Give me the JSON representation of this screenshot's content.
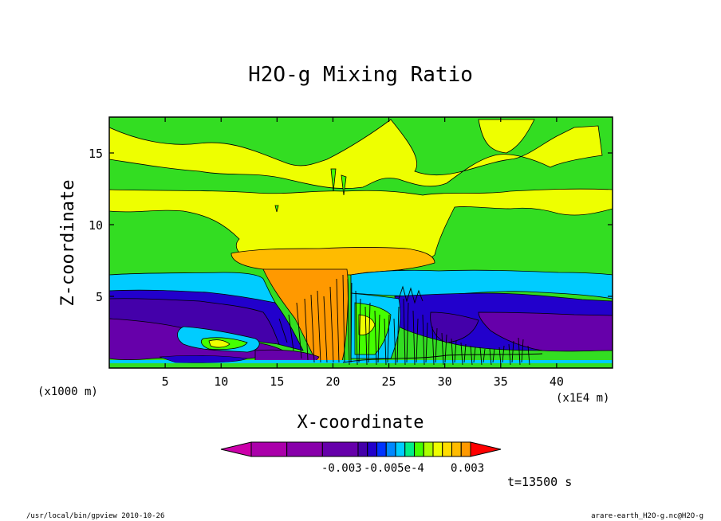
{
  "chart_data": {
    "type": "heatmap",
    "title": "H2O-g Mixing Ratio",
    "xlabel": "X-coordinate",
    "ylabel": "Z-coordinate",
    "x_unit_left": "(x1000 m)",
    "x_unit_right": "(x1E4 m)",
    "xlim": [
      0,
      45
    ],
    "ylim": [
      0,
      17.5
    ],
    "x_ticks": [
      "5",
      "10",
      "15",
      "20",
      "25",
      "30",
      "35",
      "40"
    ],
    "x_tick_values": [
      5,
      10,
      15,
      20,
      25,
      30,
      35,
      40
    ],
    "y_ticks": [
      "5",
      "10",
      "15"
    ],
    "y_tick_values": [
      5,
      10,
      15
    ],
    "colorbar": {
      "colors": [
        "#cc00aa",
        "#aa00aa",
        "#8800aa",
        "#6600aa",
        "#4400aa",
        "#2200cc",
        "#0033ff",
        "#0088ff",
        "#00ccff",
        "#00ee88",
        "#44ff00",
        "#aaff00",
        "#eeff00",
        "#ffdd00",
        "#ffbb00",
        "#ff9900",
        "#ff0000"
      ],
      "labels": [
        "-0.003",
        "-0.005e-4",
        "0.003"
      ]
    },
    "time_label": "t=13500 s"
  },
  "footer": {
    "left": "/usr/local/bin/gpview  2010-10-26",
    "right": "arare-earth_H2O-g.nc@H2O-g"
  }
}
